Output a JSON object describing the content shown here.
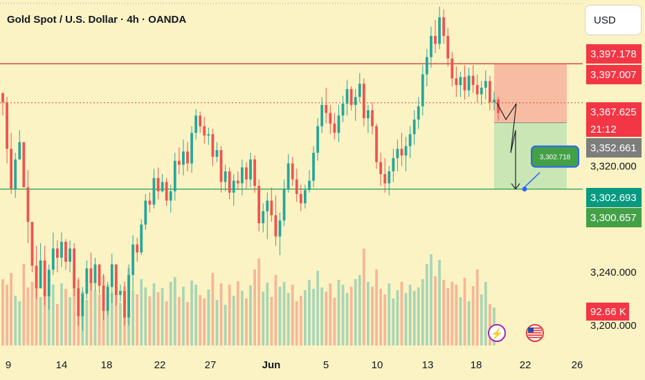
{
  "header": {
    "title": "Gold Spot / U.S. Dollar · 4h · OANDA",
    "currency_button": "USD"
  },
  "colors": {
    "background": "#fbf3c4",
    "up": "#26a69a",
    "down": "#ef5350",
    "resistance": "#e03a3e",
    "support": "#3aa05a",
    "stop_zone": "#f6b39c",
    "target_zone": "#bfe3b1"
  },
  "chart_data": {
    "type": "candlestick",
    "symbol": "Gold Spot / U.S. Dollar",
    "interval": "4h",
    "broker": "OANDA",
    "ylim": [
      3185,
      3445
    ],
    "x_ticks": [
      "9",
      "14",
      "18",
      "22",
      "27",
      "Jun",
      "5",
      "10",
      "13",
      "18",
      "22",
      "26"
    ],
    "y_ticks": [
      {
        "value": 3320,
        "label": "3,320.000"
      },
      {
        "value": 3240,
        "label": "3,240.000"
      },
      {
        "value": 3200,
        "label": "3,200.000"
      }
    ],
    "horizontal_levels": [
      {
        "value": 3397.007,
        "style": "solid",
        "color": "#e03a3e"
      },
      {
        "value": 3367.625,
        "style": "dotted",
        "color": "#e03a3e"
      },
      {
        "value": 3302.693,
        "style": "solid",
        "color": "#3aa05a"
      }
    ],
    "price_labels": [
      {
        "text": "3,397.178",
        "value": 3397.178,
        "color": "#f23645"
      },
      {
        "text": "3,397.007",
        "value": 3397.007,
        "color": "#f23645"
      },
      {
        "text": "3,367.625",
        "value": 3367.625,
        "color": "#f23645"
      },
      {
        "text": "21:12",
        "value": 3367.625,
        "color": "#f23645",
        "note": "countdown"
      },
      {
        "text": "3,352.661",
        "value": 3352.661,
        "color": "#7d7d7d"
      },
      {
        "text": "3,302.693",
        "value": 3302.693,
        "color": "#089981"
      },
      {
        "text": "3,300.657",
        "value": 3300.657,
        "color": "#43a047"
      }
    ],
    "volume_label": "92.66 K",
    "position_tool": {
      "type": "short",
      "stop": 3397.007,
      "entry": 3352.661,
      "target": 3302.693,
      "target_callout": "3,302.718"
    },
    "projected_path": [
      3367.625,
      3355,
      3367,
      3330,
      3347,
      3302.693
    ],
    "volume_range": [
      0,
      150
    ],
    "candles_ohlc": [
      [
        3375,
        3374,
        3358,
        3368
      ],
      [
        3368,
        3372,
        3322,
        3333
      ],
      [
        3333,
        3345,
        3299,
        3303
      ],
      [
        3303,
        3330,
        3296,
        3325
      ],
      [
        3325,
        3347,
        3326,
        3338
      ],
      [
        3338,
        3338,
        3305,
        3304
      ],
      [
        3304,
        3317,
        3262,
        3278
      ],
      [
        3278,
        3270,
        3240,
        3245
      ],
      [
        3245,
        3260,
        3220,
        3228
      ],
      [
        3228,
        3262,
        3234,
        3249
      ],
      [
        3249,
        3260,
        3215,
        3222
      ],
      [
        3222,
        3246,
        3212,
        3242
      ],
      [
        3242,
        3270,
        3238,
        3258
      ],
      [
        3258,
        3264,
        3240,
        3251
      ],
      [
        3251,
        3270,
        3244,
        3263
      ],
      [
        3263,
        3265,
        3242,
        3248
      ],
      [
        3248,
        3264,
        3240,
        3258
      ],
      [
        3258,
        3262,
        3222,
        3228
      ],
      [
        3228,
        3236,
        3200,
        3207
      ],
      [
        3207,
        3229,
        3196,
        3224
      ],
      [
        3224,
        3249,
        3220,
        3243
      ],
      [
        3243,
        3255,
        3226,
        3232
      ],
      [
        3232,
        3251,
        3226,
        3246
      ],
      [
        3246,
        3244,
        3224,
        3230
      ],
      [
        3230,
        3239,
        3204,
        3211
      ],
      [
        3211,
        3233,
        3208,
        3229
      ],
      [
        3229,
        3254,
        3217,
        3246
      ],
      [
        3246,
        3240,
        3215,
        3223
      ],
      [
        3223,
        3231,
        3218,
        3226
      ],
      [
        3226,
        3233,
        3200,
        3206
      ],
      [
        3206,
        3246,
        3200,
        3238
      ],
      [
        3238,
        3268,
        3227,
        3261
      ],
      [
        3261,
        3266,
        3248,
        3255
      ],
      [
        3255,
        3280,
        3253,
        3276
      ],
      [
        3276,
        3299,
        3272,
        3294
      ],
      [
        3294,
        3300,
        3285,
        3291
      ],
      [
        3291,
        3318,
        3288,
        3311
      ],
      [
        3311,
        3319,
        3295,
        3301
      ],
      [
        3301,
        3314,
        3300,
        3308
      ],
      [
        3308,
        3311,
        3290,
        3294
      ],
      [
        3294,
        3306,
        3285,
        3301
      ],
      [
        3301,
        3330,
        3294,
        3324
      ],
      [
        3324,
        3334,
        3314,
        3321
      ],
      [
        3321,
        3340,
        3313,
        3331
      ],
      [
        3331,
        3338,
        3316,
        3322
      ],
      [
        3322,
        3350,
        3315,
        3345
      ],
      [
        3345,
        3363,
        3340,
        3358
      ],
      [
        3358,
        3361,
        3345,
        3350
      ],
      [
        3350,
        3357,
        3337,
        3343
      ],
      [
        3343,
        3349,
        3336,
        3344
      ],
      [
        3344,
        3348,
        3320,
        3327
      ],
      [
        3327,
        3338,
        3323,
        3332
      ],
      [
        3332,
        3335,
        3300,
        3308
      ],
      [
        3308,
        3321,
        3301,
        3316
      ],
      [
        3316,
        3319,
        3295,
        3300
      ],
      [
        3300,
        3314,
        3290,
        3309
      ],
      [
        3309,
        3316,
        3302,
        3307
      ],
      [
        3307,
        3325,
        3298,
        3319
      ],
      [
        3319,
        3323,
        3303,
        3310
      ],
      [
        3310,
        3330,
        3304,
        3325
      ],
      [
        3325,
        3328,
        3300,
        3305
      ],
      [
        3305,
        3310,
        3271,
        3277
      ],
      [
        3277,
        3292,
        3270,
        3286
      ],
      [
        3286,
        3300,
        3265,
        3294
      ],
      [
        3294,
        3304,
        3278,
        3283
      ],
      [
        3283,
        3298,
        3260,
        3267
      ],
      [
        3267,
        3285,
        3253,
        3279
      ],
      [
        3279,
        3310,
        3275,
        3303
      ],
      [
        3303,
        3329,
        3300,
        3322
      ],
      [
        3322,
        3327,
        3305,
        3310
      ],
      [
        3310,
        3318,
        3293,
        3299
      ],
      [
        3299,
        3306,
        3286,
        3292
      ],
      [
        3292,
        3306,
        3288,
        3302
      ],
      [
        3302,
        3317,
        3300,
        3309
      ],
      [
        3309,
        3335,
        3304,
        3330
      ],
      [
        3330,
        3356,
        3324,
        3350
      ],
      [
        3350,
        3372,
        3345,
        3366
      ],
      [
        3366,
        3379,
        3352,
        3360
      ],
      [
        3360,
        3366,
        3344,
        3352
      ],
      [
        3352,
        3360,
        3340,
        3345
      ],
      [
        3345,
        3366,
        3338,
        3358
      ],
      [
        3358,
        3373,
        3353,
        3367
      ],
      [
        3367,
        3385,
        3358,
        3378
      ],
      [
        3378,
        3380,
        3362,
        3366
      ],
      [
        3366,
        3378,
        3354,
        3372
      ],
      [
        3372,
        3390,
        3368,
        3382
      ],
      [
        3382,
        3386,
        3350,
        3356
      ],
      [
        3356,
        3366,
        3345,
        3362
      ],
      [
        3362,
        3368,
        3344,
        3350
      ],
      [
        3350,
        3352,
        3318,
        3323
      ],
      [
        3323,
        3330,
        3305,
        3314
      ],
      [
        3314,
        3326,
        3300,
        3307
      ],
      [
        3307,
        3320,
        3298,
        3316
      ],
      [
        3316,
        3333,
        3308,
        3326
      ],
      [
        3326,
        3340,
        3316,
        3333
      ],
      [
        3333,
        3345,
        3320,
        3328
      ],
      [
        3328,
        3342,
        3316,
        3335
      ],
      [
        3335,
        3350,
        3326,
        3344
      ],
      [
        3344,
        3362,
        3336,
        3355
      ],
      [
        3355,
        3372,
        3348,
        3365
      ],
      [
        3365,
        3396,
        3358,
        3389
      ],
      [
        3389,
        3408,
        3380,
        3402
      ],
      [
        3402,
        3425,
        3394,
        3418
      ],
      [
        3418,
        3430,
        3405,
        3412
      ],
      [
        3412,
        3440,
        3408,
        3432
      ],
      [
        3432,
        3438,
        3412,
        3418
      ],
      [
        3418,
        3424,
        3395,
        3401
      ],
      [
        3401,
        3406,
        3380,
        3386
      ],
      [
        3386,
        3395,
        3372,
        3381
      ],
      [
        3381,
        3391,
        3372,
        3387
      ],
      [
        3387,
        3396,
        3370,
        3377
      ],
      [
        3377,
        3394,
        3372,
        3388
      ],
      [
        3388,
        3396,
        3375,
        3381
      ],
      [
        3381,
        3389,
        3368,
        3374
      ],
      [
        3374,
        3384,
        3366,
        3379
      ],
      [
        3379,
        3392,
        3370,
        3384
      ],
      [
        3384,
        3388,
        3362,
        3368
      ],
      [
        3368,
        3376,
        3362,
        3370
      ],
      [
        3370,
        3372,
        3354,
        3360
      ]
    ],
    "volumes": [
      96,
      88,
      105,
      72,
      64,
      118,
      84,
      92,
      110,
      70,
      98,
      75,
      88,
      60,
      90,
      82,
      70,
      104,
      95,
      78,
      66,
      92,
      80,
      74,
      101,
      88,
      76,
      93,
      62,
      86,
      112,
      80,
      74,
      96,
      84,
      71,
      90,
      77,
      83,
      64,
      92,
      99,
      70,
      85,
      63,
      94,
      88,
      73,
      68,
      81,
      105,
      66,
      90,
      59,
      88,
      72,
      93,
      79,
      68,
      87,
      110,
      126,
      78,
      91,
      70,
      102,
      85,
      92,
      76,
      88,
      64,
      72,
      80,
      95,
      82,
      108,
      84,
      78,
      90,
      69,
      95,
      88,
      76,
      85,
      96,
      102,
      140,
      92,
      85,
      110,
      82,
      74,
      90,
      68,
      80,
      92,
      76,
      88,
      79,
      84,
      96,
      118,
      132,
      100,
      124,
      95,
      83,
      92,
      88,
      70,
      98,
      64,
      86,
      110,
      74,
      92,
      60,
      55
    ]
  },
  "markers": {
    "flash_event": "⚡",
    "us_flag": "US"
  }
}
